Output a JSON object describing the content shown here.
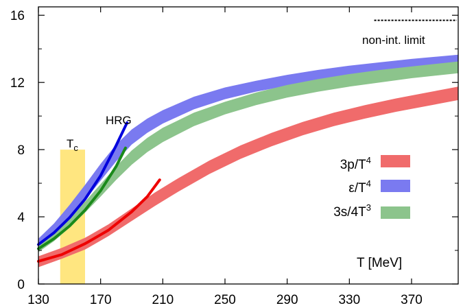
{
  "chart_data": {
    "type": "line",
    "title": "",
    "xlabel": "T [MeV]",
    "ylabel": "",
    "xlim": [
      130,
      400
    ],
    "ylim": [
      0,
      16.5
    ],
    "x_ticks": [
      130,
      170,
      210,
      250,
      290,
      330,
      370
    ],
    "y_ticks": [
      0,
      4,
      8,
      12,
      16
    ],
    "grid": false,
    "legend_position": "right",
    "colors": {
      "pressure": "#f06b6b",
      "energy": "#7a7af0",
      "entropy": "#8cc48c",
      "hrg_energy": "#0000dd",
      "hrg_entropy": "#1a8a1a",
      "hrg_pressure": "#ee0000",
      "tc_band": "#ffe680"
    },
    "series": [
      {
        "name": "3p/T⁴",
        "kind": "band",
        "x": [
          130,
          145,
          160,
          175,
          190,
          205,
          220,
          240,
          260,
          280,
          300,
          320,
          340,
          360,
          380,
          400
        ],
        "lower": [
          1.0,
          1.5,
          2.05,
          2.85,
          3.75,
          4.65,
          5.5,
          6.55,
          7.45,
          8.2,
          8.85,
          9.4,
          9.85,
          10.25,
          10.6,
          10.95
        ],
        "upper": [
          1.65,
          2.15,
          2.75,
          3.55,
          4.5,
          5.45,
          6.3,
          7.35,
          8.25,
          9.0,
          9.65,
          10.2,
          10.65,
          11.05,
          11.4,
          11.75
        ]
      },
      {
        "name": "ε/T⁴",
        "kind": "band",
        "x": [
          130,
          140,
          150,
          160,
          170,
          180,
          190,
          200,
          210,
          230,
          250,
          270,
          290,
          310,
          330,
          350,
          370,
          400
        ],
        "lower": [
          2.1,
          2.9,
          3.9,
          5.0,
          6.15,
          7.3,
          8.3,
          9.0,
          9.55,
          10.4,
          11.0,
          11.45,
          11.8,
          12.1,
          12.35,
          12.55,
          12.75,
          13.0
        ],
        "upper": [
          2.7,
          3.6,
          4.7,
          5.9,
          7.15,
          8.3,
          9.2,
          9.85,
          10.35,
          11.15,
          11.7,
          12.1,
          12.45,
          12.75,
          13.0,
          13.2,
          13.4,
          13.65
        ]
      },
      {
        "name": "3s/4T³",
        "kind": "band",
        "x": [
          130,
          140,
          150,
          160,
          170,
          180,
          190,
          200,
          210,
          230,
          250,
          270,
          290,
          310,
          330,
          350,
          370,
          400
        ],
        "lower": [
          1.9,
          2.55,
          3.35,
          4.25,
          5.2,
          6.2,
          7.1,
          7.85,
          8.45,
          9.4,
          10.1,
          10.65,
          11.1,
          11.45,
          11.75,
          12.0,
          12.25,
          12.55
        ],
        "upper": [
          2.4,
          3.1,
          3.95,
          4.9,
          5.95,
          7.0,
          7.95,
          8.7,
          9.3,
          10.2,
          10.85,
          11.4,
          11.85,
          12.2,
          12.5,
          12.75,
          12.95,
          13.25
        ]
      }
    ],
    "lines": [
      {
        "name": "HRG",
        "id": "hrg_energy",
        "x": [
          130,
          140,
          150,
          160,
          170,
          180,
          187
        ],
        "y": [
          2.35,
          3.05,
          3.95,
          5.05,
          6.45,
          8.25,
          9.6
        ]
      },
      {
        "id": "hrg_entropy",
        "x": [
          130,
          140,
          150,
          160,
          170,
          180,
          186
        ],
        "y": [
          2.1,
          2.7,
          3.45,
          4.4,
          5.55,
          7.0,
          8.1
        ]
      },
      {
        "id": "hrg_pressure",
        "x": [
          130,
          145,
          160,
          175,
          190,
          200,
          208
        ],
        "y": [
          1.35,
          1.75,
          2.4,
          3.2,
          4.3,
          5.2,
          6.2
        ]
      },
      {
        "id": "noninteracting_limit",
        "x": [
          346,
          400
        ],
        "y": [
          15.7,
          15.7
        ],
        "style": "dotted"
      }
    ],
    "bands_vertical": [
      {
        "label": "Tc",
        "x": [
          144,
          160
        ],
        "y": [
          0,
          8
        ]
      }
    ]
  },
  "annotations": {
    "hrg": "HRG",
    "tc_main": "T",
    "tc_sub": "c",
    "noninteracting": "non-int. limit",
    "xlabel": "T [MeV]"
  },
  "legend": [
    {
      "base": "3p/T",
      "sup": "4",
      "series": "pressure"
    },
    {
      "base": "ε/T",
      "sup": "4",
      "series": "energy"
    },
    {
      "base": "3s/4T",
      "sup": "3",
      "series": "entropy"
    }
  ]
}
